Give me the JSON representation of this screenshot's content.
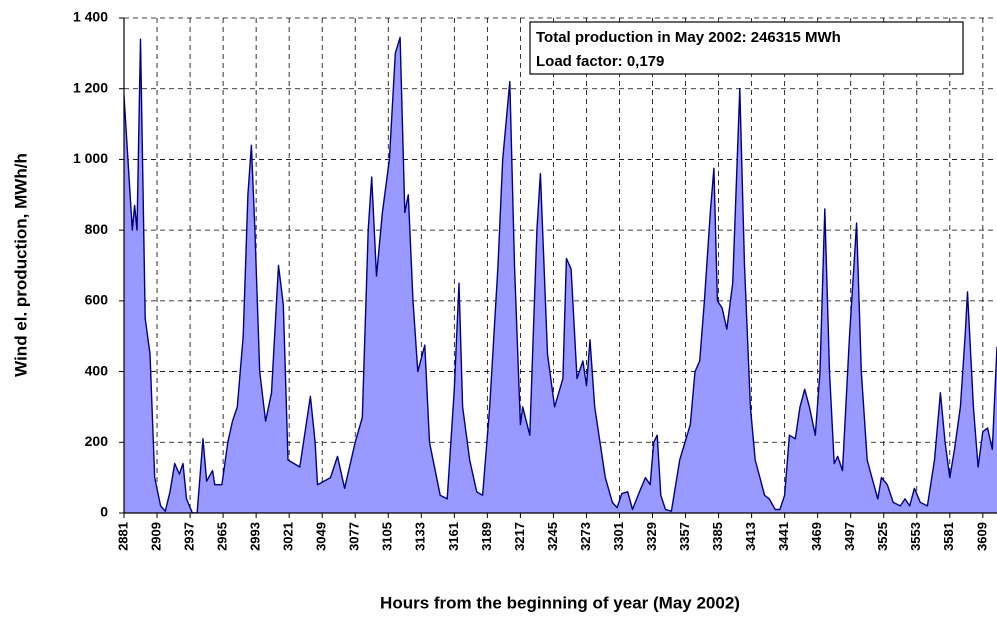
{
  "chart_data": {
    "type": "area",
    "xlabel": "Hours from the beginning of year (May 2002)",
    "ylabel": "Wind el. production, MWh/h",
    "annotations": [
      "Total production in May 2002: 246315 MWh",
      "Load factor: 0,179"
    ],
    "fill_color": "#9999ff",
    "line_color": "#000080",
    "grid": true,
    "xlim": [
      2881,
      3621
    ],
    "ylim": [
      0,
      1400
    ],
    "xticks": [
      2881,
      2909,
      2937,
      2965,
      2993,
      3021,
      3049,
      3077,
      3105,
      3133,
      3161,
      3189,
      3217,
      3245,
      3273,
      3301,
      3329,
      3357,
      3385,
      3413,
      3441,
      3469,
      3497,
      3525,
      3553,
      3581,
      3609
    ],
    "yticks": [
      0,
      200,
      400,
      600,
      800,
      {
        "value": 1000,
        "label": "1 000"
      },
      {
        "value": 1200,
        "label": "1 200"
      },
      {
        "value": 1400,
        "label": "1 400"
      }
    ],
    "x": [
      2881,
      2888,
      2890,
      2892,
      2895,
      2899,
      2903,
      2907,
      2912,
      2916,
      2920,
      2924,
      2928,
      2931,
      2934,
      2939,
      2943,
      2948,
      2951,
      2956,
      2958,
      2964,
      2969,
      2973,
      2977,
      2982,
      2986,
      2989,
      2992,
      2996,
      3001,
      3006,
      3012,
      3016,
      3020,
      3030,
      3039,
      3043,
      3045,
      3056,
      3062,
      3068,
      3077,
      3083,
      3088,
      3091,
      3095,
      3100,
      3106,
      3111,
      3115,
      3119,
      3122,
      3126,
      3130,
      3136,
      3140,
      3149,
      3155,
      3161,
      3165,
      3168,
      3174,
      3180,
      3185,
      3191,
      3198,
      3202,
      3208,
      3212,
      3217,
      3219,
      3225,
      3231,
      3234,
      3240,
      3246,
      3253,
      3256,
      3260,
      3265,
      3270,
      3273,
      3276,
      3280,
      3289,
      3295,
      3299,
      3303,
      3308,
      3312,
      3318,
      3323,
      3327,
      3330,
      3333,
      3336,
      3340,
      3345,
      3352,
      3361,
      3365,
      3369,
      3373,
      3378,
      3381,
      3384,
      3388,
      3392,
      3397,
      3403,
      3407,
      3412,
      3416,
      3420,
      3424,
      3428,
      3433,
      3437,
      3441,
      3445,
      3450,
      3454,
      3458,
      3462,
      3467,
      3471,
      3475,
      3479,
      3483,
      3486,
      3490,
      3496,
      3502,
      3506,
      3511,
      3515,
      3520,
      3523,
      3528,
      3533,
      3539,
      3543,
      3547,
      3551,
      3556,
      3562,
      3568,
      3573,
      3577,
      3581,
      3585,
      3590,
      3594,
      3596,
      3601,
      3605,
      3609,
      3613,
      3617,
      3621
    ],
    "values": [
      1180,
      800,
      870,
      800,
      1340,
      550,
      450,
      100,
      20,
      5,
      60,
      140,
      110,
      140,
      40,
      0,
      0,
      210,
      90,
      120,
      80,
      80,
      200,
      260,
      300,
      500,
      900,
      1040,
      800,
      400,
      260,
      340,
      700,
      590,
      150,
      130,
      330,
      200,
      80,
      100,
      160,
      70,
      200,
      270,
      800,
      950,
      670,
      850,
      1000,
      1300,
      1345,
      850,
      900,
      600,
      400,
      475,
      200,
      50,
      40,
      350,
      650,
      300,
      150,
      60,
      50,
      300,
      700,
      1000,
      1220,
      700,
      250,
      300,
      220,
      800,
      960,
      450,
      300,
      380,
      720,
      690,
      380,
      430,
      360,
      490,
      300,
      100,
      30,
      15,
      55,
      60,
      10,
      60,
      100,
      80,
      200,
      220,
      50,
      10,
      5,
      150,
      250,
      400,
      430,
      600,
      850,
      975,
      600,
      580,
      520,
      650,
      1200,
      700,
      300,
      150,
      100,
      50,
      40,
      10,
      10,
      50,
      220,
      210,
      300,
      350,
      300,
      220,
      400,
      860,
      400,
      140,
      160,
      120,
      500,
      820,
      400,
      150,
      100,
      40,
      100,
      80,
      30,
      20,
      40,
      20,
      70,
      30,
      20,
      150,
      340,
      200,
      100,
      180,
      300,
      500,
      625,
      300,
      130,
      230,
      240,
      180,
      470
    ]
  }
}
